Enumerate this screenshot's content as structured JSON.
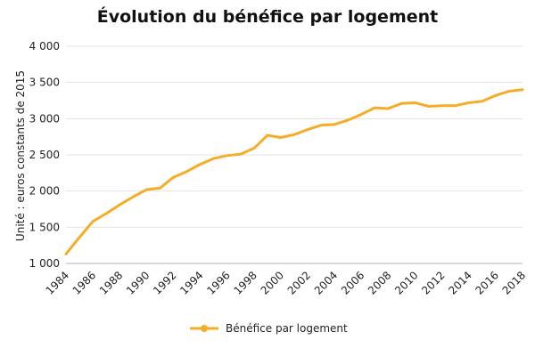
{
  "chart_data": {
    "type": "line",
    "title": "Évolution du bénéfice par logement",
    "ylabel": "Unité : euros constants de 2015",
    "xlabel": "",
    "ylim": [
      1000,
      4000
    ],
    "yticks": [
      1000,
      1500,
      2000,
      2500,
      3000,
      3500,
      4000
    ],
    "ytick_labels": [
      "1 000",
      "1 500",
      "2 000",
      "2 500",
      "3 000",
      "3 500",
      "4 000"
    ],
    "xticks": [
      "1984",
      "1986",
      "1988",
      "1990",
      "1992",
      "1994",
      "1996",
      "1998",
      "2000",
      "2002",
      "2004",
      "2006",
      "2008",
      "2010",
      "2012",
      "2014",
      "2016",
      "2018"
    ],
    "grid": true,
    "legend_position": "bottom",
    "accent_color": "#f5ac27",
    "x": [
      1984,
      1985,
      1986,
      1987,
      1988,
      1989,
      1990,
      1991,
      1992,
      1993,
      1994,
      1995,
      1996,
      1997,
      1998,
      1999,
      2000,
      2001,
      2002,
      2003,
      2004,
      2005,
      2006,
      2007,
      2008,
      2009,
      2010,
      2011,
      2012,
      2013,
      2014,
      2015,
      2016,
      2017,
      2018
    ],
    "series": [
      {
        "name": "Bénéfice par logement",
        "values": [
          1130,
          1360,
          1580,
          1690,
          1810,
          1920,
          2020,
          2040,
          2190,
          2270,
          2370,
          2450,
          2490,
          2510,
          2590,
          2770,
          2740,
          2780,
          2850,
          2910,
          2920,
          2980,
          3060,
          3150,
          3140,
          3210,
          3220,
          3170,
          3180,
          3180,
          3220,
          3240,
          3320,
          3380,
          3400
        ]
      }
    ]
  }
}
